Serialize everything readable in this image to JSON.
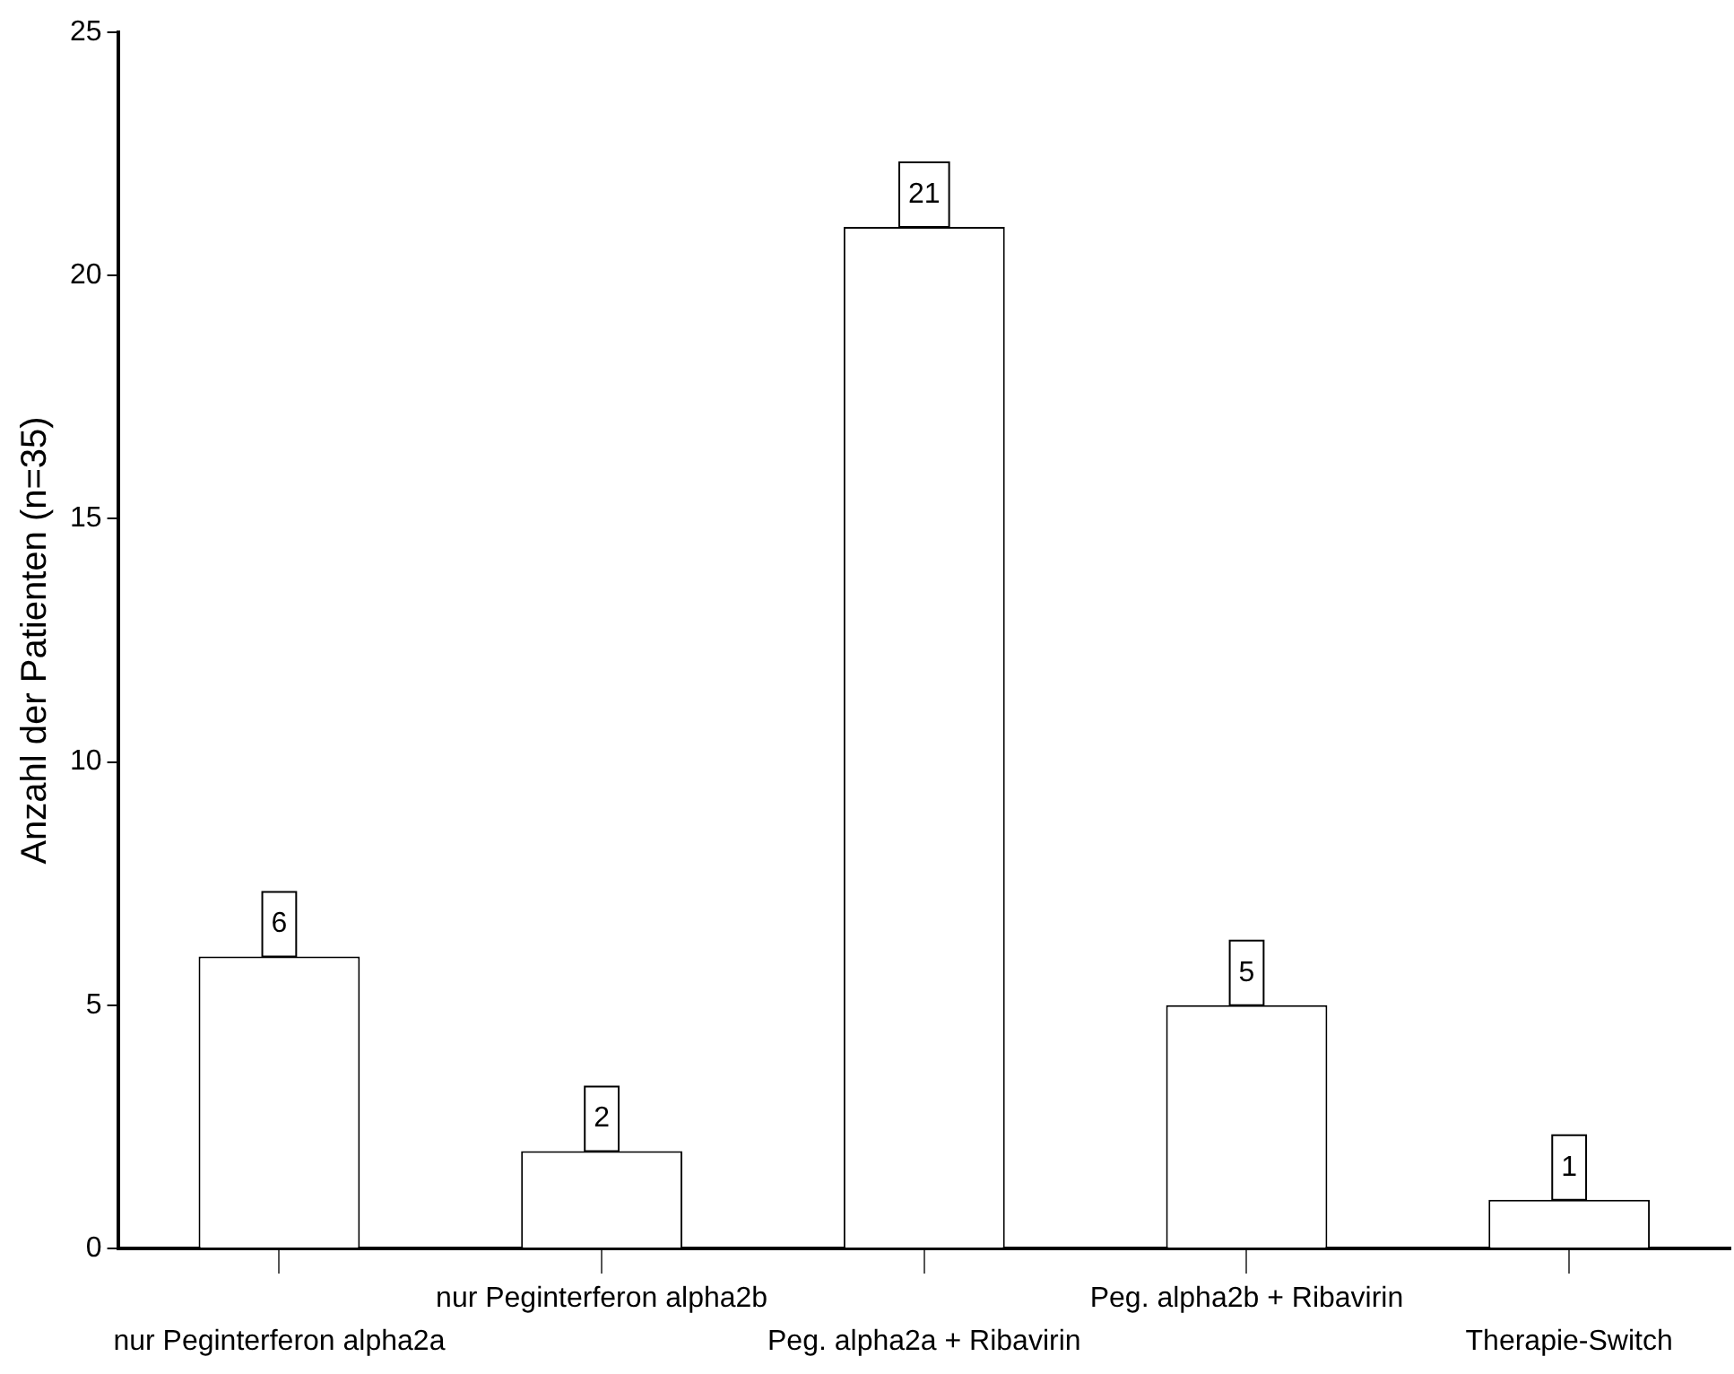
{
  "chart_data": {
    "type": "bar",
    "ylabel": "Anzahl der Patienten (n=35)",
    "categories": [
      "nur Peginterferon alpha2a",
      "nur Peginterferon alpha2b",
      "Peg. alpha2a + Ribavirin",
      "Peg. alpha2b + Ribavirin",
      "Therapie-Switch"
    ],
    "values": [
      6,
      2,
      21,
      5,
      1
    ],
    "color": "#ffffff",
    "ylim": [
      0,
      25
    ],
    "yticks": [
      0,
      5,
      10,
      15,
      20,
      25
    ],
    "grid": false,
    "legend": false,
    "data_labels": true
  }
}
